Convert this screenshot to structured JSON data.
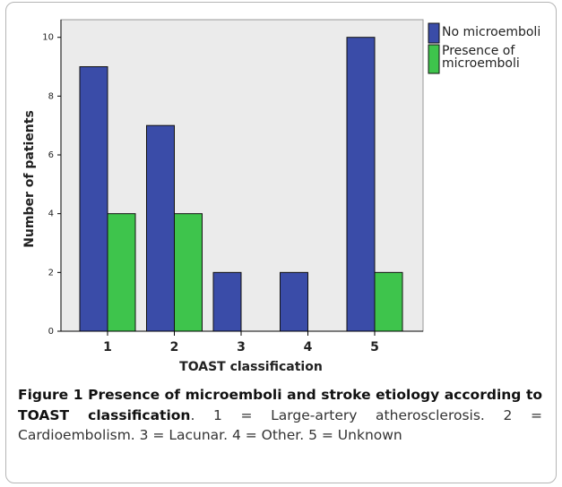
{
  "chart_data": {
    "type": "bar",
    "xlabel": "TOAST classification",
    "ylabel": "Number of patients",
    "categories": [
      "1",
      "2",
      "3",
      "4",
      "5"
    ],
    "series": [
      {
        "name": "No microemboli",
        "color": "#3a4ca8",
        "values": [
          9,
          7,
          2,
          2,
          10
        ]
      },
      {
        "name": "Presence of microemboli",
        "color": "#3ec44c",
        "values": [
          4,
          4,
          null,
          null,
          2
        ]
      }
    ],
    "ylim": [
      0,
      10.6
    ],
    "yticks": [
      0,
      2,
      4,
      6,
      8,
      10
    ],
    "legend": "outside-right"
  },
  "caption": {
    "label": "Figure 1",
    "title": "Presence of microemboli and stroke etiology according to TOAST classification",
    "text": ". 1 = Large-artery atherosclerosis. 2 = Cardioembolism. 3 = Lacunar. 4 = Other. 5 = Unknown"
  }
}
